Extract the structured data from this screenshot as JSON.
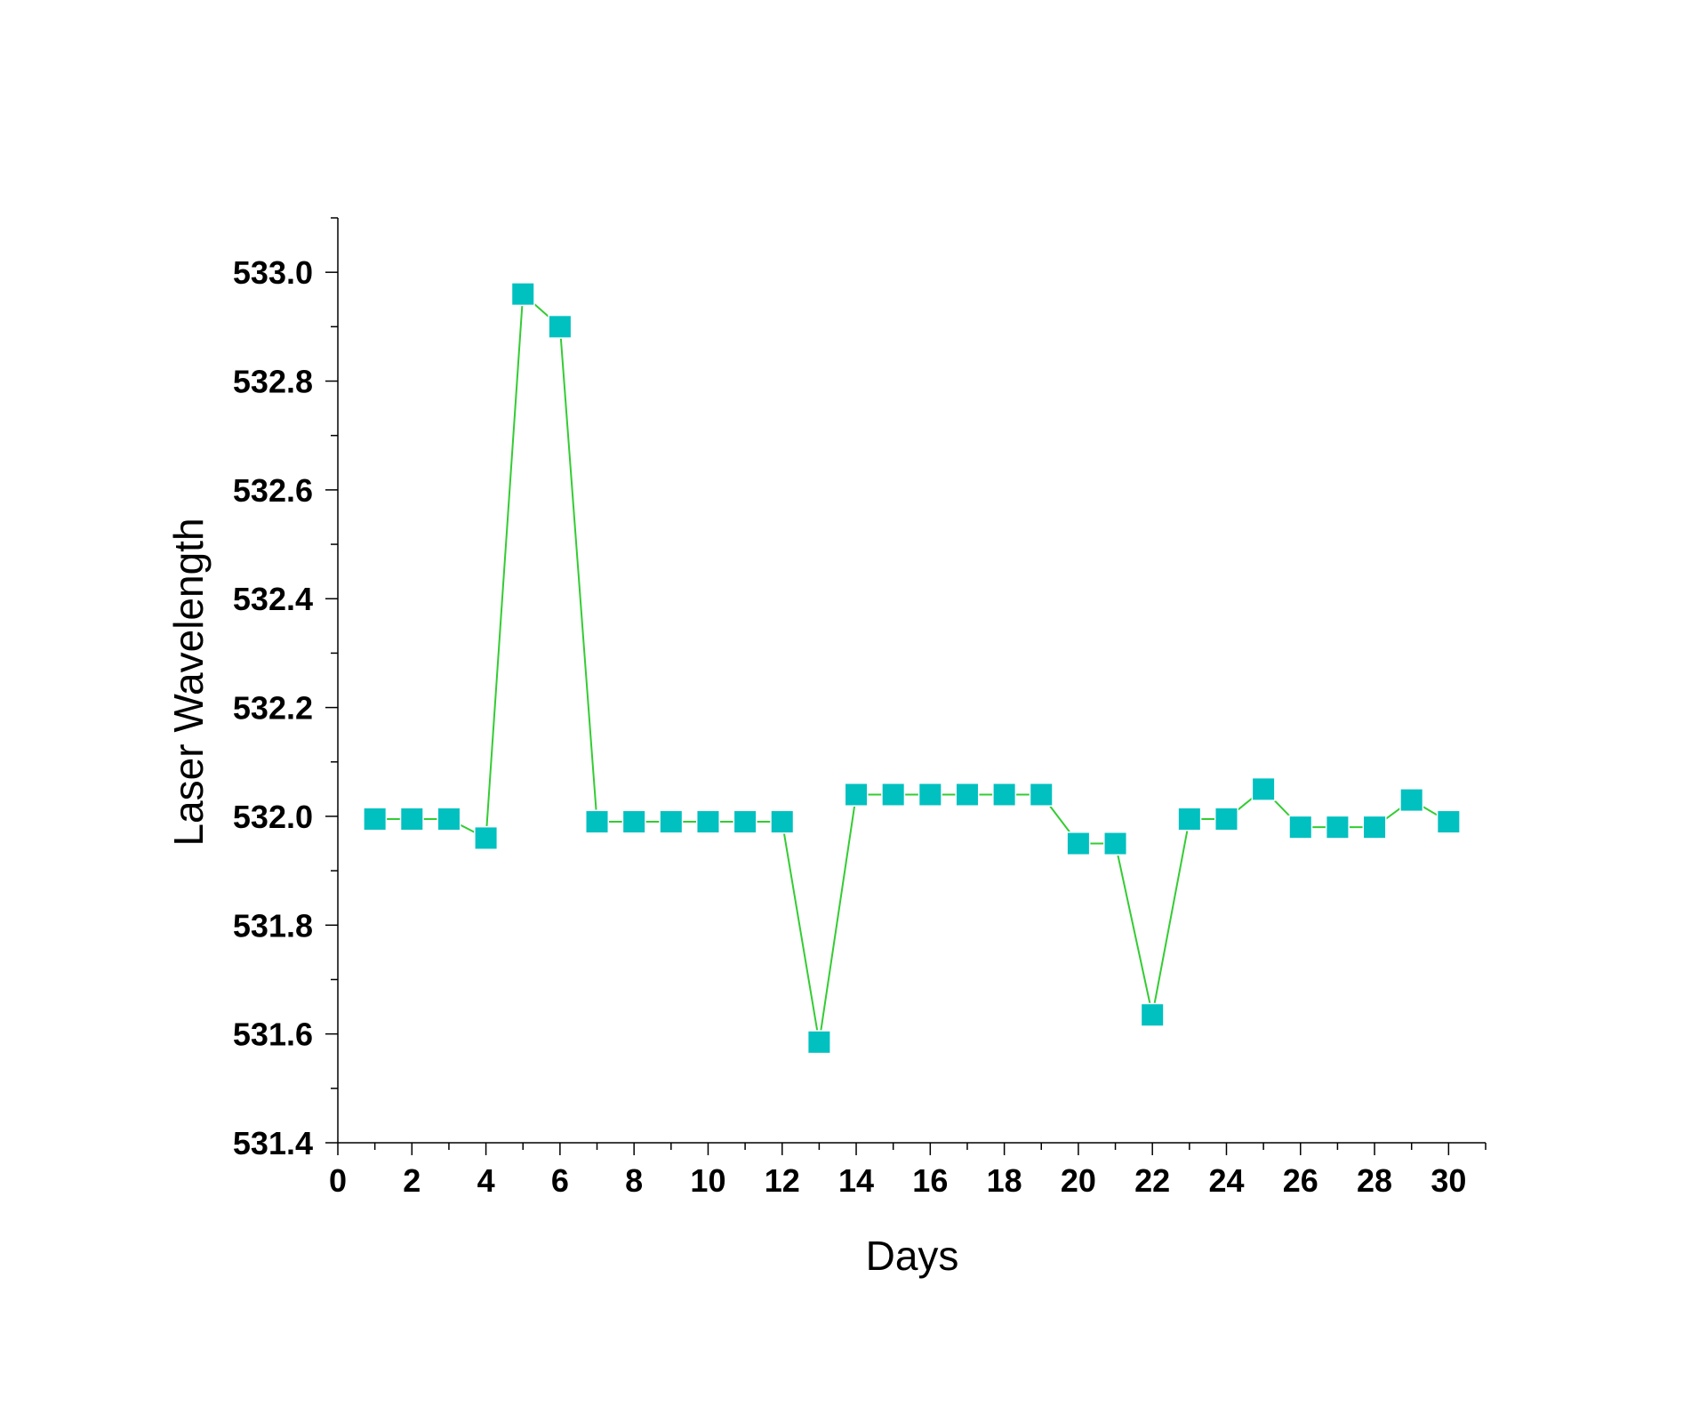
{
  "chart_data": {
    "type": "line",
    "xlabel": "Days",
    "ylabel": "Laser Wavelength",
    "x": [
      1,
      2,
      3,
      4,
      5,
      6,
      7,
      8,
      9,
      10,
      11,
      12,
      13,
      14,
      15,
      16,
      17,
      18,
      19,
      20,
      21,
      22,
      23,
      24,
      25,
      26,
      27,
      28,
      29,
      30
    ],
    "series": [
      {
        "color": "#33cc33",
        "marker_color": "#00c0c0",
        "values": [
          531.995,
          531.995,
          531.995,
          531.96,
          532.96,
          532.9,
          531.99,
          531.99,
          531.99,
          531.99,
          531.99,
          531.99,
          531.585,
          532.04,
          532.04,
          532.04,
          532.04,
          532.04,
          532.04,
          531.95,
          531.95,
          531.635,
          531.995,
          531.995,
          532.05,
          531.98,
          531.98,
          531.98,
          532.03,
          531.99
        ]
      }
    ],
    "xlim": [
      0,
      31
    ],
    "xticks": [
      0,
      2,
      4,
      6,
      8,
      10,
      12,
      14,
      16,
      18,
      20,
      22,
      24,
      26,
      28,
      30
    ],
    "xminorticks": [
      1,
      3,
      5,
      7,
      9,
      11,
      13,
      15,
      17,
      19,
      21,
      23,
      25,
      27,
      29,
      31
    ],
    "ylim": [
      531.4,
      533.1
    ],
    "yticks": [
      531.4,
      531.6,
      531.8,
      {
        "value": 532,
        "label": "532.0"
      },
      532.2,
      532.4,
      532.6,
      532.8,
      {
        "value": 533,
        "label": "533.0"
      }
    ],
    "yminorticks": [
      531.5,
      531.7,
      531.9,
      532.1,
      532.3,
      532.5,
      532.7,
      532.9,
      533.1
    ],
    "grid": false
  }
}
